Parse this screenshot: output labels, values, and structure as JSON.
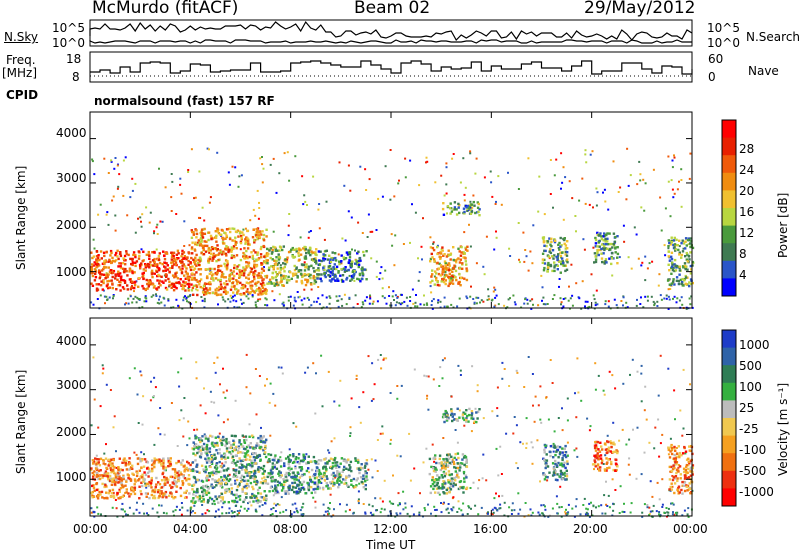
{
  "header": {
    "station": "McMurdo (fitACF)",
    "beam": "Beam 02",
    "date": "29/May/2012"
  },
  "side_labels": {
    "nsky": "N.Sky",
    "freq": "Freq.",
    "mhz": "[MHz]",
    "cpid": "CPID",
    "nsearch": "N.Search",
    "nave": "Nave"
  },
  "noise_axis": {
    "left_top": "10^5",
    "left_bottom": "10^0",
    "right_top": "10^5",
    "right_bottom": "10^0"
  },
  "freq_axis": {
    "left_top": "18",
    "left_bottom": "8",
    "right_top": "60",
    "right_bottom": "0"
  },
  "cpid_text": "normalsound (fast) 157 RF",
  "colors": {
    "power": [
      "#0000ff",
      "#2a55c8",
      "#3f7a52",
      "#4a9a3c",
      "#b8d640",
      "#f0c030",
      "#f08c10",
      "#f05a0a",
      "#e82000",
      "#ff0000"
    ],
    "velocity": [
      "#1e3cc8",
      "#2f63a8",
      "#2f7d55",
      "#35b040",
      "#bcbcbc",
      "#f0c850",
      "#f5a020",
      "#f07010",
      "#ee3010",
      "#ff0000"
    ]
  },
  "chart_data": [
    {
      "type": "heatmap",
      "name": "power-panel",
      "ylabel": "Slant Range [km]",
      "y_ticks": [
        "1000",
        "2000",
        "3000",
        "4000"
      ],
      "ylim": [
        180,
        4600
      ],
      "x_ticks": [
        "00:00",
        "04:00",
        "08:00",
        "12:00",
        "16:00",
        "20:00",
        "00:00"
      ],
      "colorbar_label": "Power [dB]",
      "colorbar_ticks": [
        "4",
        "8",
        "12",
        "16",
        "20",
        "24",
        "28"
      ],
      "regions": [
        {
          "t": [
            0.0,
            4.0
          ],
          "r": [
            600,
            1500
          ],
          "level": 0.8
        },
        {
          "t": [
            4.0,
            7.0
          ],
          "r": [
            500,
            2000
          ],
          "level": 0.65
        },
        {
          "t": [
            7.0,
            9.0
          ],
          "r": [
            700,
            1600
          ],
          "level": 0.45
        },
        {
          "t": [
            9.0,
            11.0
          ],
          "r": [
            800,
            1500
          ],
          "level": 0.25
        },
        {
          "t": [
            13.5,
            15.0
          ],
          "r": [
            700,
            1600
          ],
          "level": 0.6
        },
        {
          "t": [
            14.0,
            15.5
          ],
          "r": [
            2300,
            2600
          ],
          "level": 0.3
        },
        {
          "t": [
            18.0,
            19.0
          ],
          "r": [
            1000,
            1800
          ],
          "level": 0.35
        },
        {
          "t": [
            20.0,
            21.0
          ],
          "r": [
            1200,
            1900
          ],
          "level": 0.3
        },
        {
          "t": [
            23.0,
            24.0
          ],
          "r": [
            700,
            1800
          ],
          "level": 0.35
        }
      ]
    },
    {
      "type": "heatmap",
      "name": "velocity-panel",
      "ylabel": "Slant Range [km]",
      "y_ticks": [
        "1000",
        "2000",
        "3000",
        "4000"
      ],
      "ylim": [
        180,
        4600
      ],
      "x_ticks": [
        "00:00",
        "04:00",
        "08:00",
        "12:00",
        "16:00",
        "20:00",
        "00:00"
      ],
      "xlabel": "Time UT",
      "colorbar_label": "Velocity [m s⁻¹]",
      "colorbar_ticks": [
        "1000",
        "500",
        "100",
        "25",
        "-25",
        "-100",
        "-500",
        "-1000"
      ],
      "regions": [
        {
          "t": [
            0.0,
            4.0
          ],
          "r": [
            600,
            1500
          ],
          "level": 0.68
        },
        {
          "t": [
            4.0,
            7.0
          ],
          "r": [
            500,
            2000
          ],
          "level": 0.35
        },
        {
          "t": [
            7.0,
            9.0
          ],
          "r": [
            700,
            1600
          ],
          "level": 0.3
        },
        {
          "t": [
            9.0,
            11.0
          ],
          "r": [
            800,
            1500
          ],
          "level": 0.35
        },
        {
          "t": [
            13.5,
            15.0
          ],
          "r": [
            700,
            1600
          ],
          "level": 0.4
        },
        {
          "t": [
            14.0,
            15.5
          ],
          "r": [
            2300,
            2600
          ],
          "level": 0.32
        },
        {
          "t": [
            18.0,
            19.0
          ],
          "r": [
            1000,
            1800
          ],
          "level": 0.3
        },
        {
          "t": [
            20.0,
            21.0
          ],
          "r": [
            1200,
            1900
          ],
          "level": 0.75
        },
        {
          "t": [
            23.0,
            24.0
          ],
          "r": [
            700,
            1800
          ],
          "level": 0.68
        }
      ]
    }
  ]
}
